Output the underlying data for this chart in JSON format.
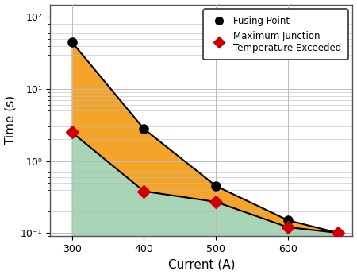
{
  "fusing_x": [
    300,
    400,
    500,
    600,
    670
  ],
  "fusing_y": [
    45,
    2.8,
    0.45,
    0.15,
    0.1
  ],
  "temp_x": [
    300,
    400,
    500,
    600,
    670
  ],
  "temp_y": [
    2.5,
    0.38,
    0.27,
    0.12,
    0.1
  ],
  "xlim": [
    270,
    690
  ],
  "ylim": [
    0.09,
    150
  ],
  "xlabel": "Current (A)",
  "ylabel": "Time (s)",
  "fusing_color": "#000000",
  "temp_color": "#cc0000",
  "orange_fill": "#f5a42a",
  "green_fill": "#a8d5b5",
  "grid_color": "#bbbbbb",
  "background_color": "#ffffff",
  "xticks": [
    300,
    400,
    500,
    600
  ],
  "yticks": [
    0.1,
    1.0,
    10.0,
    100.0
  ],
  "ytick_labels": [
    "10⁻¹",
    "10⁰",
    "10¹",
    "10²"
  ],
  "legend_fusing": "Fusing Point",
  "legend_temp": "Maximum Junction\nTemperature Exceeded"
}
